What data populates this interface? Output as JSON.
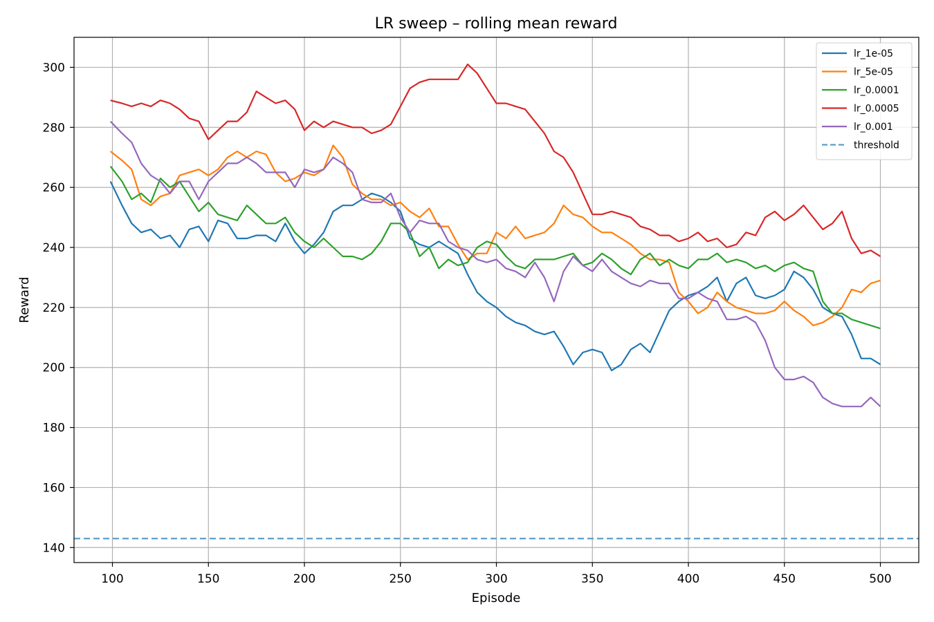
{
  "chart_data": {
    "type": "line",
    "title": "LR sweep – rolling mean reward",
    "xlabel": "Episode",
    "ylabel": "Reward",
    "xlim": [
      80,
      520
    ],
    "ylim": [
      135,
      310
    ],
    "xticks": [
      100,
      150,
      200,
      250,
      300,
      350,
      400,
      450,
      500
    ],
    "yticks": [
      140,
      160,
      180,
      200,
      220,
      240,
      260,
      280,
      300
    ],
    "grid": true,
    "legend_position": "top-right",
    "series": [
      {
        "name": "lr_1e-05",
        "color": "#1f77b4",
        "x": [
          99,
          105,
          110,
          115,
          120,
          125,
          130,
          135,
          140,
          145,
          150,
          155,
          160,
          165,
          170,
          175,
          180,
          185,
          190,
          195,
          200,
          205,
          210,
          215,
          220,
          225,
          230,
          235,
          240,
          245,
          250,
          255,
          260,
          265,
          270,
          275,
          280,
          285,
          290,
          295,
          300,
          305,
          310,
          315,
          320,
          325,
          330,
          335,
          340,
          345,
          350,
          355,
          360,
          365,
          370,
          375,
          380,
          385,
          390,
          395,
          400,
          405,
          410,
          415,
          420,
          425,
          430,
          435,
          440,
          445,
          450,
          455,
          460,
          465,
          470,
          475,
          480,
          485,
          490,
          495,
          500
        ],
        "y": [
          262,
          254,
          248,
          245,
          246,
          243,
          244,
          240,
          246,
          247,
          242,
          249,
          248,
          243,
          243,
          244,
          244,
          242,
          248,
          242,
          238,
          241,
          245,
          252,
          254,
          254,
          256,
          258,
          257,
          255,
          252,
          243,
          241,
          240,
          242,
          240,
          238,
          231,
          225,
          222,
          220,
          217,
          215,
          214,
          212,
          211,
          212,
          207,
          201,
          205,
          206,
          205,
          199,
          201,
          206,
          208,
          205,
          212,
          219,
          222,
          224,
          225,
          227,
          230,
          222,
          228,
          230,
          224,
          223,
          224,
          226,
          232,
          230,
          226,
          220,
          218,
          217,
          211,
          203,
          203,
          201
        ]
      },
      {
        "name": "lr_5e-05",
        "color": "#ff7f0e",
        "x": [
          99,
          105,
          110,
          115,
          120,
          125,
          130,
          135,
          140,
          145,
          150,
          155,
          160,
          165,
          170,
          175,
          180,
          185,
          190,
          195,
          200,
          205,
          210,
          215,
          220,
          225,
          230,
          235,
          240,
          245,
          250,
          255,
          260,
          265,
          270,
          275,
          280,
          285,
          290,
          295,
          300,
          305,
          310,
          315,
          320,
          325,
          330,
          335,
          340,
          345,
          350,
          355,
          360,
          365,
          370,
          375,
          380,
          385,
          390,
          395,
          400,
          405,
          410,
          415,
          420,
          425,
          430,
          435,
          440,
          445,
          450,
          455,
          460,
          465,
          470,
          475,
          480,
          485,
          490,
          495,
          500
        ],
        "y": [
          272,
          269,
          266,
          256,
          254,
          257,
          258,
          264,
          265,
          266,
          264,
          266,
          270,
          272,
          270,
          272,
          271,
          265,
          262,
          263,
          265,
          264,
          266,
          274,
          270,
          261,
          258,
          256,
          256,
          254,
          255,
          252,
          250,
          253,
          247,
          247,
          241,
          236,
          238,
          238,
          245,
          243,
          247,
          243,
          244,
          245,
          248,
          254,
          251,
          250,
          247,
          245,
          245,
          243,
          241,
          238,
          236,
          236,
          235,
          225,
          222,
          218,
          220,
          225,
          222,
          220,
          219,
          218,
          218,
          219,
          222,
          219,
          217,
          214,
          215,
          217,
          220,
          226,
          225,
          228,
          229
        ]
      },
      {
        "name": "lr_0.0001",
        "color": "#2ca02c",
        "x": [
          99,
          105,
          110,
          115,
          120,
          125,
          130,
          135,
          140,
          145,
          150,
          155,
          160,
          165,
          170,
          175,
          180,
          185,
          190,
          195,
          200,
          205,
          210,
          215,
          220,
          225,
          230,
          235,
          240,
          245,
          250,
          255,
          260,
          265,
          270,
          275,
          280,
          285,
          290,
          295,
          300,
          305,
          310,
          315,
          320,
          325,
          330,
          335,
          340,
          345,
          350,
          355,
          360,
          365,
          370,
          375,
          380,
          385,
          390,
          395,
          400,
          405,
          410,
          415,
          420,
          425,
          430,
          435,
          440,
          445,
          450,
          455,
          460,
          465,
          470,
          475,
          480,
          485,
          490,
          495,
          500
        ],
        "y": [
          267,
          262,
          256,
          258,
          255,
          263,
          260,
          262,
          257,
          252,
          255,
          251,
          250,
          249,
          254,
          251,
          248,
          248,
          250,
          245,
          242,
          240,
          243,
          240,
          237,
          237,
          236,
          238,
          242,
          248,
          248,
          245,
          237,
          240,
          233,
          236,
          234,
          235,
          240,
          242,
          241,
          237,
          234,
          233,
          236,
          236,
          236,
          237,
          238,
          234,
          235,
          238,
          236,
          233,
          231,
          236,
          238,
          234,
          236,
          234,
          233,
          236,
          236,
          238,
          235,
          236,
          235,
          233,
          234,
          232,
          234,
          235,
          233,
          232,
          222,
          218,
          218,
          216,
          215,
          214,
          213
        ]
      },
      {
        "name": "lr_0.0005",
        "color": "#d62728",
        "x": [
          99,
          105,
          110,
          115,
          120,
          125,
          130,
          135,
          140,
          145,
          150,
          155,
          160,
          165,
          170,
          175,
          180,
          185,
          190,
          195,
          200,
          205,
          210,
          215,
          220,
          225,
          230,
          235,
          240,
          245,
          250,
          255,
          260,
          265,
          270,
          275,
          280,
          285,
          290,
          295,
          300,
          305,
          310,
          315,
          320,
          325,
          330,
          335,
          340,
          345,
          350,
          355,
          360,
          365,
          370,
          375,
          380,
          385,
          390,
          395,
          400,
          405,
          410,
          415,
          420,
          425,
          430,
          435,
          440,
          445,
          450,
          455,
          460,
          465,
          470,
          475,
          480,
          485,
          490,
          495,
          500
        ],
        "y": [
          289,
          288,
          287,
          288,
          287,
          289,
          288,
          286,
          283,
          282,
          276,
          279,
          282,
          282,
          285,
          292,
          290,
          288,
          289,
          286,
          279,
          282,
          280,
          282,
          281,
          280,
          280,
          278,
          279,
          281,
          287,
          293,
          295,
          296,
          296,
          296,
          296,
          301,
          298,
          293,
          288,
          288,
          287,
          286,
          282,
          278,
          272,
          270,
          265,
          258,
          251,
          251,
          252,
          251,
          250,
          247,
          246,
          244,
          244,
          242,
          243,
          245,
          242,
          243,
          240,
          241,
          245,
          244,
          250,
          252,
          249,
          251,
          254,
          250,
          246,
          248,
          252,
          243,
          238,
          239,
          237
        ]
      },
      {
        "name": "lr_0.001",
        "color": "#9467bd",
        "x": [
          99,
          105,
          110,
          115,
          120,
          125,
          130,
          135,
          140,
          145,
          150,
          155,
          160,
          165,
          170,
          175,
          180,
          185,
          190,
          195,
          200,
          205,
          210,
          215,
          220,
          225,
          230,
          235,
          240,
          245,
          250,
          255,
          260,
          265,
          270,
          275,
          280,
          285,
          290,
          295,
          300,
          305,
          310,
          315,
          320,
          325,
          330,
          335,
          340,
          345,
          350,
          355,
          360,
          365,
          370,
          375,
          380,
          385,
          390,
          395,
          400,
          405,
          410,
          415,
          420,
          425,
          430,
          435,
          440,
          445,
          450,
          455,
          460,
          465,
          470,
          475,
          480,
          485,
          490,
          495,
          500
        ],
        "y": [
          282,
          278,
          275,
          268,
          264,
          262,
          258,
          262,
          262,
          256,
          262,
          265,
          268,
          268,
          270,
          268,
          265,
          265,
          265,
          260,
          266,
          265,
          266,
          270,
          268,
          265,
          256,
          255,
          255,
          258,
          250,
          245,
          249,
          248,
          248,
          242,
          240,
          239,
          236,
          235,
          236,
          233,
          232,
          230,
          235,
          230,
          222,
          232,
          237,
          234,
          232,
          236,
          232,
          230,
          228,
          227,
          229,
          228,
          228,
          223,
          223,
          225,
          223,
          222,
          216,
          216,
          217,
          215,
          209,
          200,
          196,
          196,
          197,
          195,
          190,
          188,
          187,
          187,
          187,
          190,
          187
        ]
      },
      {
        "name": "threshold",
        "color": "#5a9ec9",
        "dashed": true,
        "y_const": 143
      }
    ]
  }
}
